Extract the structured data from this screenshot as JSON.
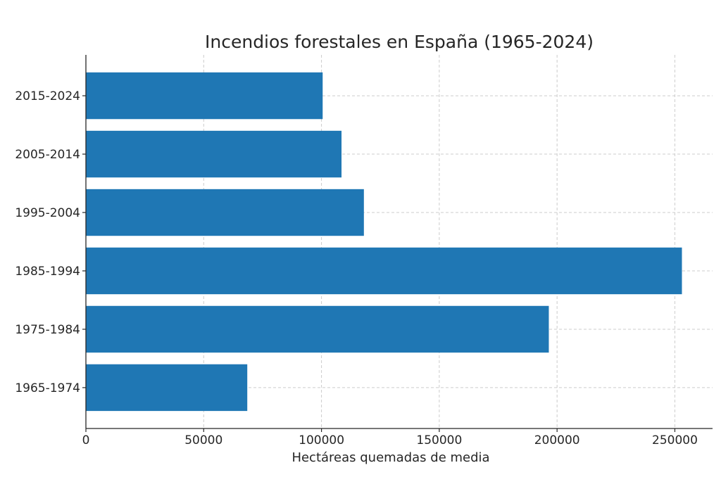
{
  "chart_data": {
    "type": "bar",
    "orientation": "horizontal",
    "title": "Incendios forestales en España (1965-2024)",
    "xlabel": "Hectáreas quemadas de media",
    "ylabel": "",
    "categories": [
      "1965-1974",
      "1975-1984",
      "1985-1994",
      "1995-2004",
      "2005-2014",
      "2015-2024"
    ],
    "values": [
      68500,
      196500,
      253000,
      118000,
      108500,
      100500
    ],
    "xlim": [
      0,
      266000
    ],
    "xticks": [
      0,
      50000,
      100000,
      150000,
      200000,
      250000
    ],
    "xtick_labels": [
      "0",
      "50000",
      "100000",
      "150000",
      "200000",
      "250000"
    ],
    "grid": true,
    "bar_color": "#1f77b4"
  }
}
